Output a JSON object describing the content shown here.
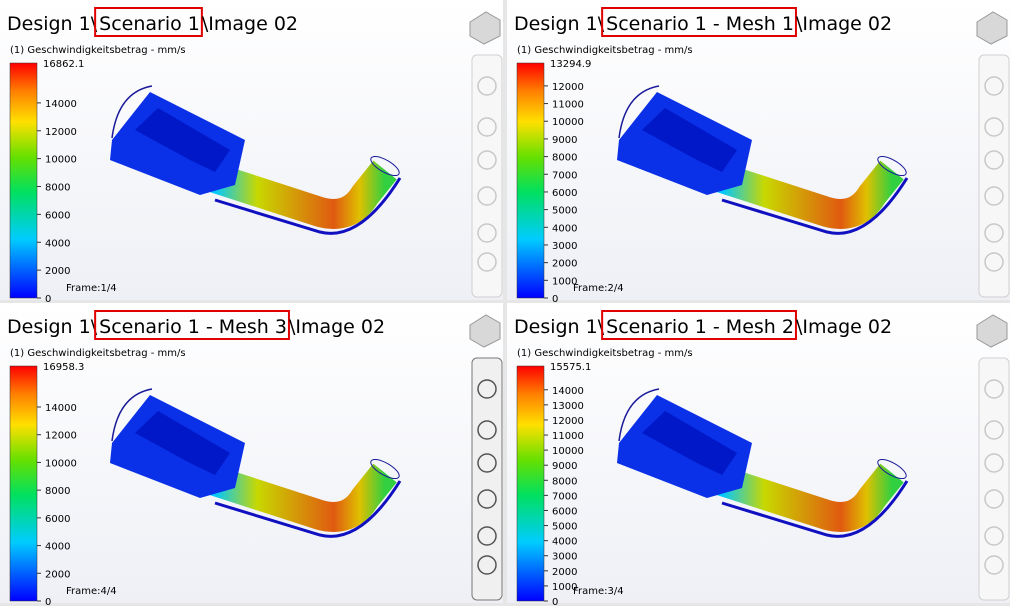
{
  "panels": [
    {
      "title_prefix": "Design 1\\",
      "title_highlight": "Scenario 1",
      "title_suffix": "\\Image 02",
      "legend_label": "(1) Geschwindigkeitsbetrag - mm/s",
      "max": 16862.1,
      "ticks": [
        0,
        2000,
        4000,
        6000,
        8000,
        10000,
        12000,
        14000
      ],
      "frame": "Frame:1/4"
    },
    {
      "title_prefix": "Design 1\\",
      "title_highlight": "Scenario 1 - Mesh 1",
      "title_suffix": "\\Image 02",
      "legend_label": "(1) Geschwindigkeitsbetrag - mm/s",
      "max": 13294.9,
      "ticks": [
        0,
        1000,
        2000,
        3000,
        4000,
        5000,
        6000,
        7000,
        8000,
        9000,
        10000,
        11000,
        12000
      ],
      "frame": "Frame:2/4"
    },
    {
      "title_prefix": "Design 1\\",
      "title_highlight": "Scenario 1 - Mesh 3",
      "title_suffix": "\\Image 02",
      "legend_label": "(1) Geschwindigkeitsbetrag - mm/s",
      "max": 16958.3,
      "ticks": [
        0,
        2000,
        4000,
        6000,
        8000,
        10000,
        12000,
        14000
      ],
      "frame": "Frame:4/4"
    },
    {
      "title_prefix": "Design 1\\",
      "title_highlight": "Scenario 1 - Mesh 2",
      "title_suffix": "\\Image 02",
      "legend_label": "(1) Geschwindigkeitsbetrag - mm/s",
      "max": 15575.1,
      "ticks": [
        0,
        1000,
        2000,
        3000,
        4000,
        5000,
        6000,
        7000,
        8000,
        9000,
        10000,
        11000,
        12000,
        13000,
        14000
      ],
      "frame": "Frame:3/4"
    }
  ]
}
